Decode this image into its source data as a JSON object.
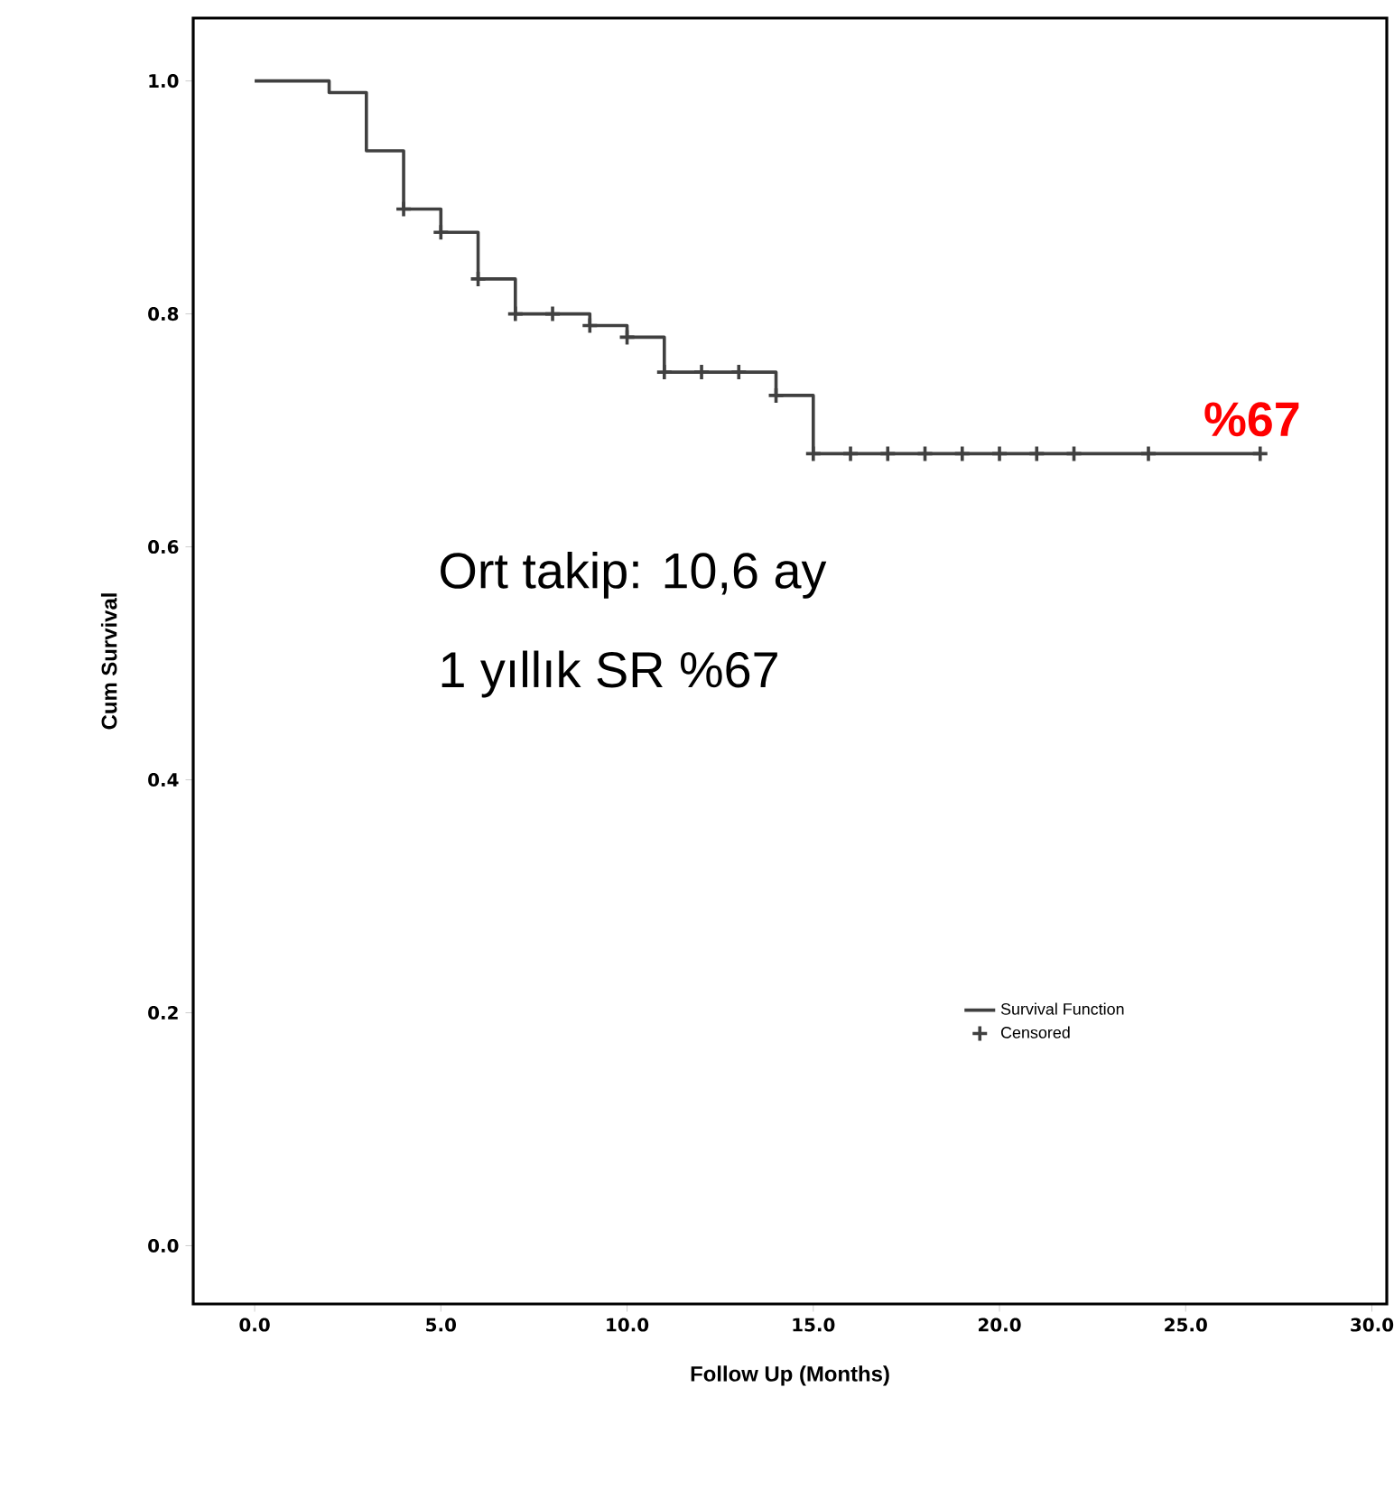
{
  "chart_data": {
    "type": "step",
    "xlabel": "Follow Up (Months)",
    "ylabel": "Cum Survival",
    "xlim": [
      -1.65,
      30.4
    ],
    "ylim": [
      -0.05,
      1.054
    ],
    "xticks": [
      {
        "value": 0,
        "label": "0.0"
      },
      {
        "value": 5,
        "label": "5.0"
      },
      {
        "value": 10,
        "label": "10.0"
      },
      {
        "value": 15,
        "label": "15.0"
      },
      {
        "value": 20,
        "label": "20.0"
      },
      {
        "value": 25,
        "label": "25.0"
      },
      {
        "value": 30,
        "label": "30.0"
      }
    ],
    "yticks": [
      {
        "value": 0,
        "label": "0.0"
      },
      {
        "value": 0.2,
        "label": "0.2"
      },
      {
        "value": 0.4,
        "label": "0.4"
      },
      {
        "value": 0.6,
        "label": "0.6"
      },
      {
        "value": 0.8,
        "label": "0.8"
      },
      {
        "value": 1,
        "label": "1.0"
      }
    ],
    "series": [
      {
        "name": "Survival Function",
        "color": "#404040",
        "marker": "none",
        "x": [
          0,
          2,
          3,
          4,
          5,
          6,
          7,
          9,
          10,
          11,
          14,
          15,
          27
        ],
        "values": [
          1.0,
          0.99,
          0.94,
          0.89,
          0.87,
          0.83,
          0.8,
          0.79,
          0.78,
          0.75,
          0.73,
          0.68,
          0.68
        ]
      },
      {
        "name": "Censored",
        "type": "scatter",
        "color": "#404040",
        "marker": "cross",
        "x": [
          4,
          5,
          6,
          7,
          8,
          9,
          10,
          11,
          12,
          13,
          14,
          15,
          16,
          17,
          18,
          19,
          20,
          21,
          22,
          24,
          27
        ],
        "values": [
          0.89,
          0.87,
          0.83,
          0.8,
          0.8,
          0.79,
          0.78,
          0.75,
          0.75,
          0.75,
          0.73,
          0.68,
          0.68,
          0.68,
          0.68,
          0.68,
          0.68,
          0.68,
          0.68,
          0.68,
          0.68
        ]
      }
    ],
    "annotations": [
      {
        "text": "%67",
        "x": 27,
        "y": 0.68
      },
      "Ort takip: 10,6 ay",
      "1 yıllık SR %67"
    ],
    "legend": "bottom right"
  }
}
